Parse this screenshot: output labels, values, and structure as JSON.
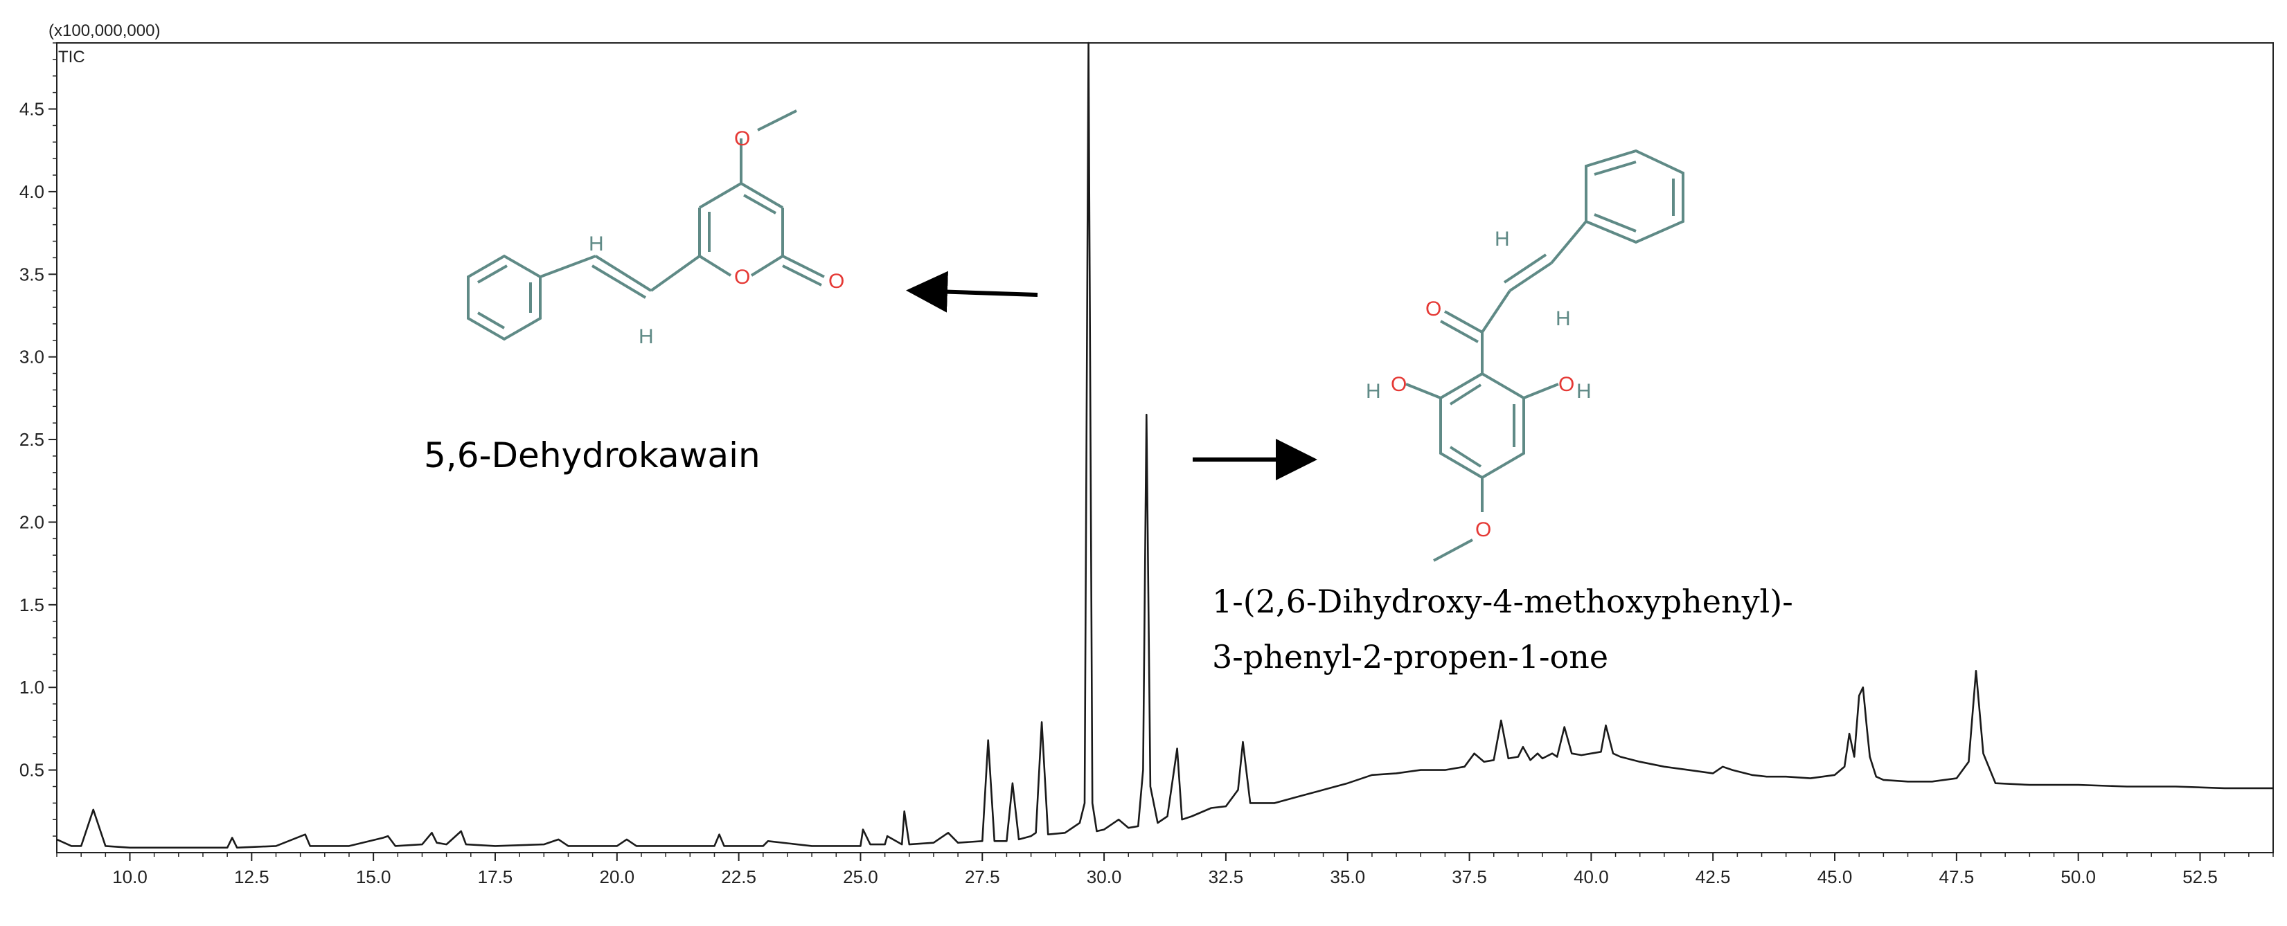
{
  "chart_data": {
    "type": "line",
    "title": "",
    "xlabel": "",
    "ylabel": "",
    "y_scale_label": "(x100,000,000)",
    "series_label": "TIC",
    "xlim": [
      8.5,
      54.0
    ],
    "ylim": [
      0,
      4.9
    ],
    "x_ticks": [
      10.0,
      12.5,
      15.0,
      17.5,
      20.0,
      22.5,
      25.0,
      27.5,
      30.0,
      32.5,
      35.0,
      37.5,
      40.0,
      42.5,
      45.0,
      47.5,
      50.0,
      52.5
    ],
    "x_tick_labels": [
      "10.0",
      "12.5",
      "15.0",
      "17.5",
      "20.0",
      "22.5",
      "25.0",
      "27.5",
      "30.0",
      "32.5",
      "35.0",
      "37.5",
      "40.0",
      "42.5",
      "45.0",
      "47.5",
      "50.0",
      "52.5"
    ],
    "y_ticks": [
      0.5,
      1.0,
      1.5,
      2.0,
      2.5,
      3.0,
      3.5,
      4.0,
      4.5
    ],
    "y_tick_labels": [
      "0.5",
      "1.0",
      "1.5",
      "2.0",
      "2.5",
      "3.0",
      "3.5",
      "4.0",
      "4.5"
    ],
    "grid": false,
    "x": [
      8.5,
      8.8,
      9.0,
      9.25,
      9.5,
      10.0,
      11.0,
      12.0,
      12.1,
      12.2,
      13.0,
      13.6,
      13.7,
      14.5,
      15.2,
      15.3,
      15.45,
      16.0,
      16.2,
      16.3,
      16.5,
      16.8,
      16.9,
      17.5,
      18.5,
      18.8,
      19.0,
      20.0,
      20.2,
      20.4,
      21.0,
      22.0,
      22.1,
      22.2,
      23.0,
      23.1,
      24.0,
      25.0,
      25.05,
      25.2,
      25.5,
      25.55,
      25.85,
      25.9,
      26.0,
      26.5,
      26.8,
      27.0,
      27.5,
      27.62,
      27.75,
      28.0,
      28.12,
      28.25,
      28.5,
      28.6,
      28.72,
      28.85,
      29.2,
      29.5,
      29.6,
      29.68,
      29.76,
      29.85,
      30.0,
      30.3,
      30.5,
      30.7,
      30.8,
      30.87,
      30.95,
      31.1,
      31.3,
      31.5,
      31.6,
      31.8,
      32.2,
      32.5,
      32.75,
      32.85,
      33.0,
      33.5,
      34.0,
      34.5,
      35.0,
      35.5,
      36.0,
      36.5,
      37.0,
      37.4,
      37.6,
      37.8,
      38.0,
      38.15,
      38.3,
      38.5,
      38.6,
      38.75,
      38.9,
      39.0,
      39.2,
      39.3,
      39.45,
      39.6,
      39.8,
      40.0,
      40.2,
      40.3,
      40.45,
      40.6,
      41.0,
      41.5,
      42.0,
      42.5,
      42.7,
      42.9,
      43.3,
      43.6,
      44.0,
      44.5,
      45.0,
      45.2,
      45.3,
      45.4,
      45.5,
      45.58,
      45.66,
      45.72,
      45.85,
      46.0,
      46.5,
      47.0,
      47.5,
      47.75,
      47.9,
      48.05,
      48.3,
      49.0,
      50.0,
      51.0,
      52.0,
      53.0,
      54.0
    ],
    "series": [
      {
        "name": "TIC",
        "values": [
          0.08,
          0.04,
          0.04,
          0.26,
          0.04,
          0.03,
          0.03,
          0.03,
          0.09,
          0.03,
          0.04,
          0.11,
          0.04,
          0.04,
          0.09,
          0.1,
          0.04,
          0.05,
          0.12,
          0.06,
          0.05,
          0.13,
          0.05,
          0.04,
          0.05,
          0.08,
          0.04,
          0.04,
          0.08,
          0.04,
          0.04,
          0.04,
          0.11,
          0.04,
          0.04,
          0.07,
          0.04,
          0.04,
          0.14,
          0.05,
          0.05,
          0.1,
          0.05,
          0.25,
          0.05,
          0.06,
          0.12,
          0.06,
          0.07,
          0.68,
          0.07,
          0.07,
          0.42,
          0.08,
          0.1,
          0.12,
          0.79,
          0.11,
          0.12,
          0.18,
          0.3,
          4.9,
          0.3,
          0.13,
          0.14,
          0.2,
          0.15,
          0.16,
          0.5,
          2.65,
          0.4,
          0.18,
          0.22,
          0.63,
          0.2,
          0.22,
          0.27,
          0.28,
          0.38,
          0.67,
          0.3,
          0.3,
          0.34,
          0.38,
          0.42,
          0.47,
          0.48,
          0.5,
          0.5,
          0.52,
          0.6,
          0.55,
          0.56,
          0.8,
          0.57,
          0.58,
          0.64,
          0.56,
          0.6,
          0.57,
          0.6,
          0.58,
          0.76,
          0.6,
          0.59,
          0.6,
          0.61,
          0.77,
          0.6,
          0.58,
          0.55,
          0.52,
          0.5,
          0.48,
          0.52,
          0.5,
          0.47,
          0.46,
          0.46,
          0.45,
          0.47,
          0.52,
          0.72,
          0.58,
          0.95,
          1.0,
          0.75,
          0.58,
          0.46,
          0.44,
          0.43,
          0.43,
          0.45,
          0.55,
          1.1,
          0.6,
          0.42,
          0.41,
          0.41,
          0.4,
          0.4,
          0.39,
          0.39
        ]
      }
    ],
    "annotations": [
      {
        "text": "5,6-Dehydrokawain",
        "points_to_x": 29.7
      },
      {
        "text": "1-(2,6-Dihydroxy-4-methoxyphenyl)-",
        "points_to_x": 30.9
      },
      {
        "text": "3-phenyl-2-propen-1-one",
        "points_to_x": 30.9
      }
    ],
    "structure_atoms": {
      "left": [
        "O",
        "H",
        "H",
        "O",
        "O"
      ],
      "right": [
        "H",
        "H",
        "O",
        "O",
        "H",
        "O",
        "H",
        "O"
      ]
    },
    "colors": {
      "trace": "#1a1a1a",
      "bond": "#5f8a86",
      "oxygen": "#e53935",
      "hydrogen": "#5f8a86",
      "arrow": "#000000"
    }
  }
}
